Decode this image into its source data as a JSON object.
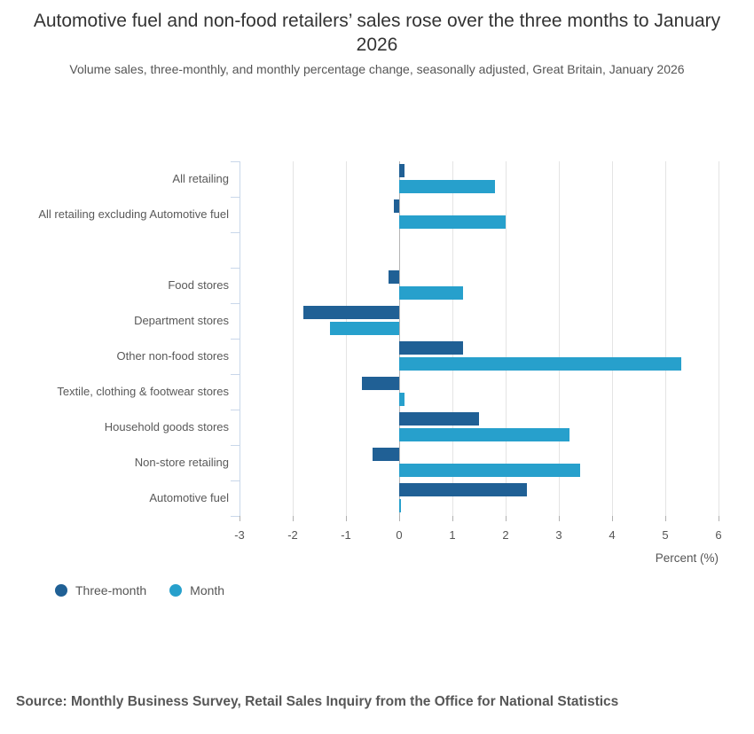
{
  "header": {
    "title": "Automotive fuel and non-food retailers’ sales rose over the three months to January 2026",
    "subtitle": "Volume sales, three-monthly, and monthly percentage change, seasonally adjusted, Great Britain, January 2026"
  },
  "chart_data": {
    "type": "bar",
    "orientation": "horizontal",
    "title": "Automotive fuel and non-food retailers’ sales rose over the three months to January 2026",
    "subtitle": "Volume sales, three-monthly, and monthly percentage change, seasonally adjusted, Great Britain, January 2026",
    "categories": [
      "All retailing",
      "All retailing excluding Automotive fuel",
      "",
      "Food stores",
      "Department stores",
      "Other non-food stores",
      "Textile, clothing & footwear stores",
      "Household goods stores",
      "Non-store retailing",
      "Automotive fuel"
    ],
    "series": [
      {
        "name": "Three-month",
        "color": "#206095",
        "values": [
          0.1,
          -0.1,
          null,
          -0.2,
          -1.8,
          1.2,
          -0.7,
          1.5,
          -0.5,
          2.4
        ]
      },
      {
        "name": "Month",
        "color": "#27a0cc",
        "values": [
          1.8,
          2.0,
          null,
          1.2,
          -1.3,
          5.3,
          0.1,
          3.2,
          3.4,
          0.0
        ]
      }
    ],
    "xlabel": "Percent (%)",
    "xlim": [
      -3,
      6
    ],
    "xticks": [
      -3,
      -2,
      -1,
      0,
      1,
      2,
      3,
      4,
      5,
      6
    ],
    "grid": true,
    "legend_position": "bottom-left"
  },
  "legend": {
    "items": [
      "Three-month",
      "Month"
    ]
  },
  "source": "Source: Monthly Business Survey, Retail Sales Inquiry from the Office for National Statistics",
  "colors": {
    "three_month": "#206095",
    "month": "#27a0cc",
    "gridline": "#e4e4e4",
    "zero_line": "#b5b5b5",
    "category_axis": "#c9d7ea",
    "text": "#555555"
  }
}
